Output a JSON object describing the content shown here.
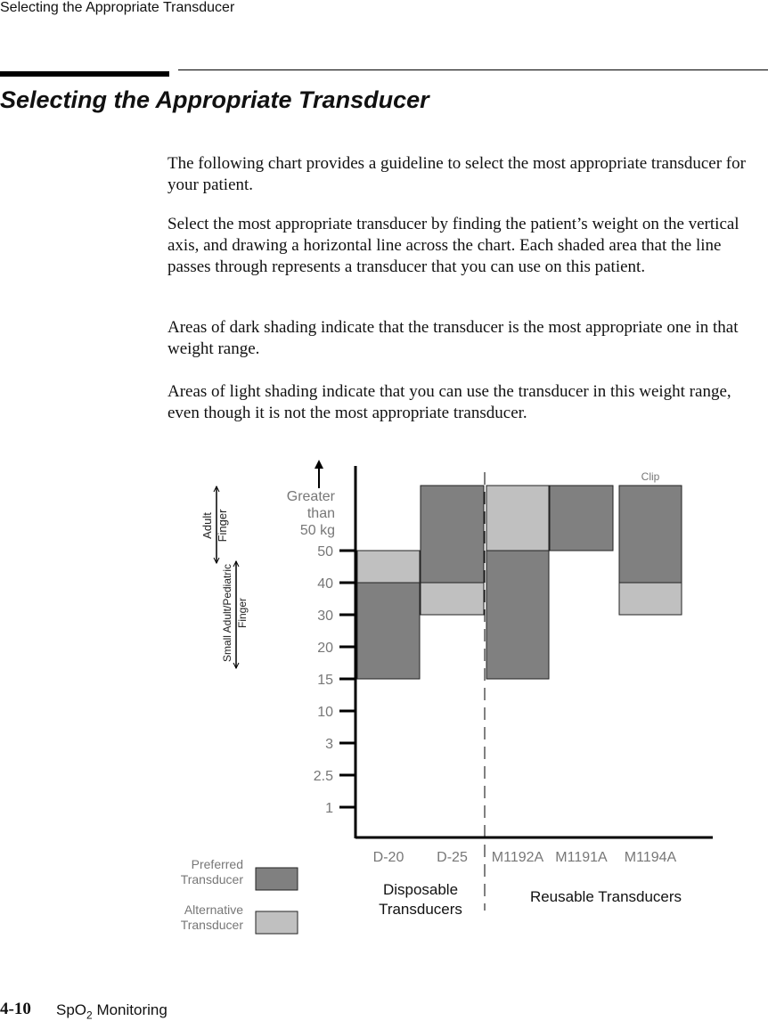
{
  "header": {
    "running_title": "Selecting the Appropriate Transducer",
    "title": "Selecting the Appropriate Transducer"
  },
  "paragraphs": [
    "The following chart provides a guideline to select the most appropriate transducer for your patient.",
    "Select the most appropriate transducer by finding the patient’s weight on the vertical axis, and drawing a horizontal line across the chart. Each shaded area that the line passes through represents a transducer that you can use on this patient.",
    "Areas of dark shading indicate that the transducer is the most appropriate one in that weight range.",
    "Areas of light shading indicate that you can use the transducer in this weight range, even though it is not the most appropriate transducer."
  ],
  "chart_data": {
    "type": "range-bar",
    "categories": [
      "D-20",
      "D-25",
      "M1192A",
      "M1191A",
      "M1194A"
    ],
    "yticks": [
      1,
      2.5,
      3,
      10,
      15,
      20,
      30,
      40,
      50
    ],
    "y_top_label": [
      "Greater",
      "than",
      "50 kg"
    ],
    "series": [
      {
        "name": "Preferred Transducer",
        "color": "#808080",
        "values": [
          [
            15,
            40
          ],
          [
            40,
            null
          ],
          [
            15,
            50
          ],
          [
            50,
            null
          ],
          [
            40,
            null
          ]
        ]
      },
      {
        "name": "Alternative Transducer",
        "color": "#c0c0c0",
        "values": [
          [
            40,
            50
          ],
          [
            30,
            40
          ],
          [
            50,
            null
          ],
          null,
          [
            30,
            40
          ]
        ]
      }
    ],
    "annotations": {
      "clip": "Clip",
      "disposable": "Disposable Transducers",
      "reusable": "Reusable Transducers",
      "adult": [
        "Adult",
        "Finger"
      ],
      "pediatric": [
        "Small Adult/Pediatric",
        "Finger"
      ]
    }
  },
  "footer": {
    "page": "4-10",
    "section": [
      "SpO",
      "2",
      " Monitoring"
    ]
  }
}
